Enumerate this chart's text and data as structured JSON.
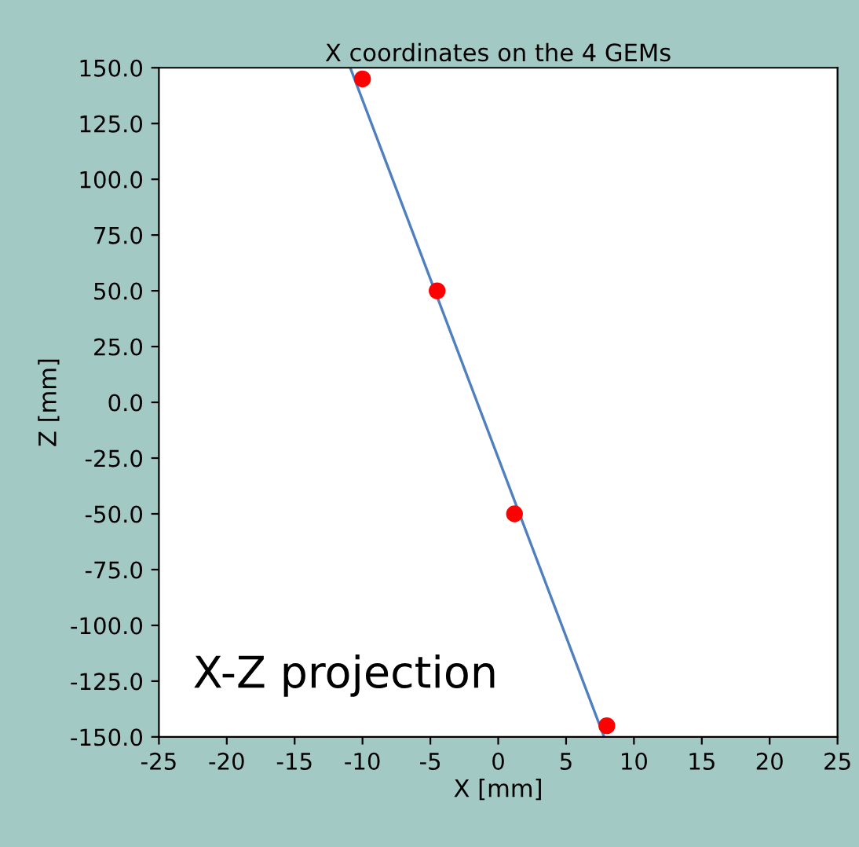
{
  "chart_data": {
    "type": "scatter",
    "title": "X coordinates on the 4 GEMs",
    "xlabel": "X [mm]",
    "ylabel": "Z [mm]",
    "annotations": [
      "X-Z projection"
    ],
    "series": [
      {
        "color": "#ff0000",
        "x": [
          -10,
          -4.5,
          1.2,
          8
        ],
        "values": [
          145,
          50,
          -50,
          -145
        ],
        "marker": "circle"
      },
      {
        "type": "line",
        "color": "#4f7fbf",
        "x": [
          -10.9,
          7.8
        ],
        "values": [
          150,
          -150
        ],
        "marker": "none"
      }
    ],
    "xlim": [
      -25,
      25
    ],
    "ylim": [
      -150,
      150
    ],
    "xticks": [
      -25,
      -20,
      -15,
      -10,
      -5,
      0,
      5,
      10,
      15,
      20,
      25
    ],
    "yticks": [
      {
        "value": 150,
        "label": "150.0"
      },
      {
        "value": 125,
        "label": "125.0"
      },
      {
        "value": 100,
        "label": "100.0"
      },
      {
        "value": 75,
        "label": "75.0"
      },
      {
        "value": 50,
        "label": "50.0"
      },
      {
        "value": 25,
        "label": "25.0"
      },
      {
        "value": 0,
        "label": "0.0"
      },
      {
        "value": -25,
        "label": "-25.0"
      },
      {
        "value": -50,
        "label": "-50.0"
      },
      {
        "value": -75,
        "label": "-75.0"
      },
      {
        "value": -100,
        "label": "-100.0"
      },
      {
        "value": -125,
        "label": "-125.0"
      },
      {
        "value": -150,
        "label": "-150.0"
      }
    ],
    "grid": false,
    "legend": false
  }
}
